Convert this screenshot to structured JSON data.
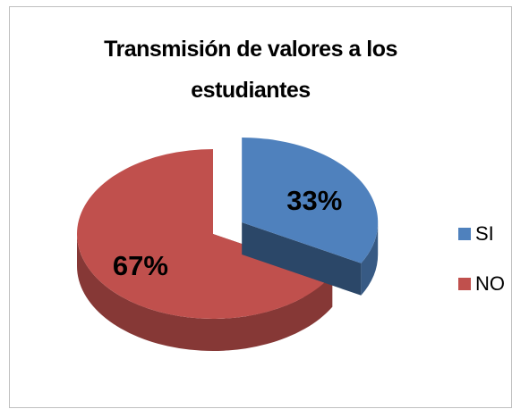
{
  "chart_data": {
    "type": "pie",
    "title": "Transmisión de valores a los estudiantes",
    "categories": [
      "SI",
      "NO"
    ],
    "values": [
      33,
      67
    ],
    "value_labels": [
      "33%",
      "67%"
    ],
    "colors": [
      "#4f81bd",
      "#c0504d"
    ],
    "legend": "right"
  }
}
